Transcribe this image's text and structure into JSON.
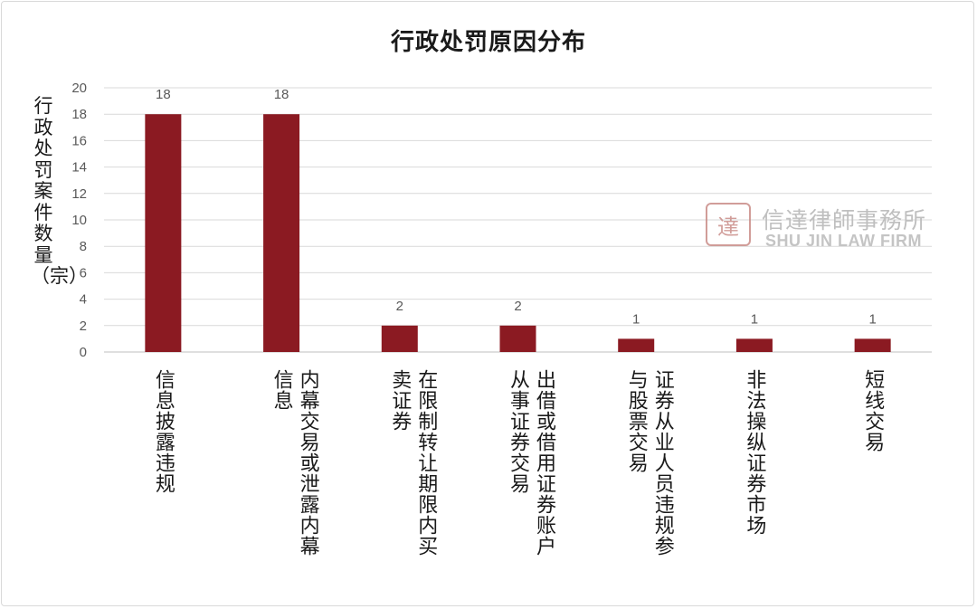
{
  "chart_data": {
    "type": "bar",
    "title": "行政处罚原因分布",
    "ylabel": "行政处罚案件数量（宗）",
    "xlabel": "",
    "ylim": [
      0,
      20
    ],
    "yticks": [
      "0",
      "2",
      "4",
      "6",
      "8",
      "10",
      "12",
      "14",
      "16",
      "18",
      "20"
    ],
    "grid": true,
    "bar_color": "#8B1A22",
    "categories": [
      "信息披露违规",
      "内幕交易或泄露内幕信息",
      "在限制转让期限内买卖证券",
      "出借或借用证券账户从事证券交易",
      "证券从业人员违规参与股票交易",
      "非法操纵证券市场",
      "短线交易"
    ],
    "category_lines": [
      [
        "信息披露违规"
      ],
      [
        "内幕交易或泄露内幕",
        "信息"
      ],
      [
        "在限制转让期限内买",
        "卖证券"
      ],
      [
        "出借或借用证券账户",
        "从事证券交易"
      ],
      [
        "证券从业人员违规参",
        "与股票交易"
      ],
      [
        "非法操纵证券市场"
      ],
      [
        "短线交易"
      ]
    ],
    "values": [
      18,
      18,
      2,
      2,
      1,
      1,
      1
    ],
    "data_labels": [
      "18",
      "18",
      "2",
      "2",
      "1",
      "1",
      "1"
    ]
  },
  "watermark": {
    "seal_glyph": "達",
    "firm_name_cn": "信達律師事務所",
    "firm_name_en": "SHU JIN LAW FIRM"
  }
}
